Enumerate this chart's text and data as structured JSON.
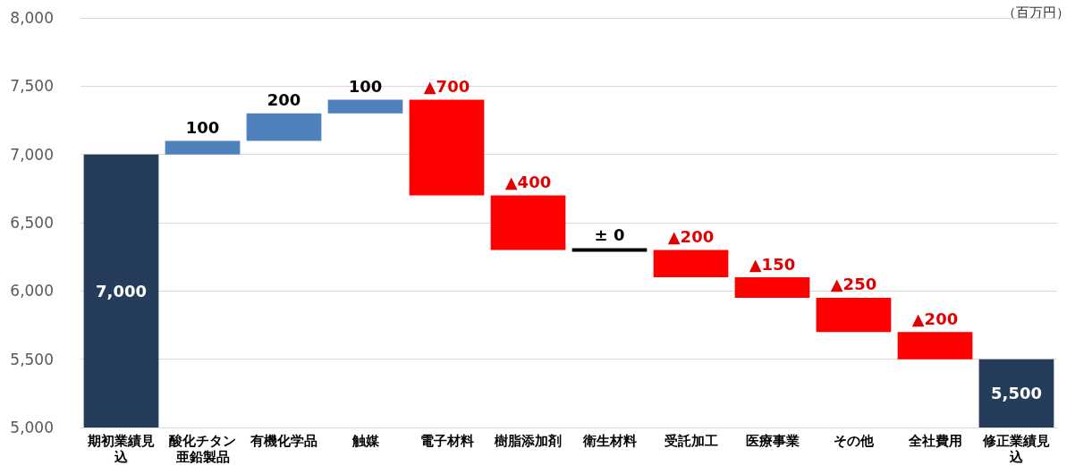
{
  "chart_data": {
    "type": "bar",
    "categories": [
      "期初業績見込",
      "酸化チタン亜鉛製品",
      "有機化学品",
      "触媒",
      "電子材料",
      "樹脂添加剤",
      "衛生材料",
      "受託加工",
      "医療事業",
      "その他",
      "全社費用",
      "修正業績見込"
    ],
    "values": [
      7000,
      100,
      200,
      100,
      -700,
      -400,
      0,
      -200,
      -150,
      -250,
      -200,
      5500
    ],
    "base": [
      null,
      7000,
      7100,
      7300,
      7400,
      6700,
      6300,
      6300,
      6100,
      5950,
      5700,
      null
    ],
    "colors": [
      "#253d5b",
      "#4f81bd",
      "#4f81bd",
      "#4f81bd",
      "#ff0000",
      "#ff0000",
      "#000000",
      "#ff0000",
      "#ff0000",
      "#ff0000",
      "#ff0000",
      "#253d5b"
    ],
    "value_labels": [
      "7,000",
      "100",
      "200",
      "100",
      "▲700",
      "▲400",
      "± 0",
      "▲200",
      "▲150",
      "▲250",
      "▲200",
      "5,500"
    ],
    "ylim": [
      5000,
      8000
    ],
    "yticks": [
      {
        "value": 5000,
        "label": "5,000"
      },
      {
        "value": 5500,
        "label": "5,500"
      },
      {
        "value": 6000,
        "label": "6,000"
      },
      {
        "value": 6500,
        "label": "6,500"
      },
      {
        "value": 7000,
        "label": "7,000"
      },
      {
        "value": 7500,
        "label": "7,500"
      },
      {
        "value": 8000,
        "label": "8,000"
      }
    ],
    "grid": "y",
    "annotations": [
      "（百万円）"
    ]
  }
}
